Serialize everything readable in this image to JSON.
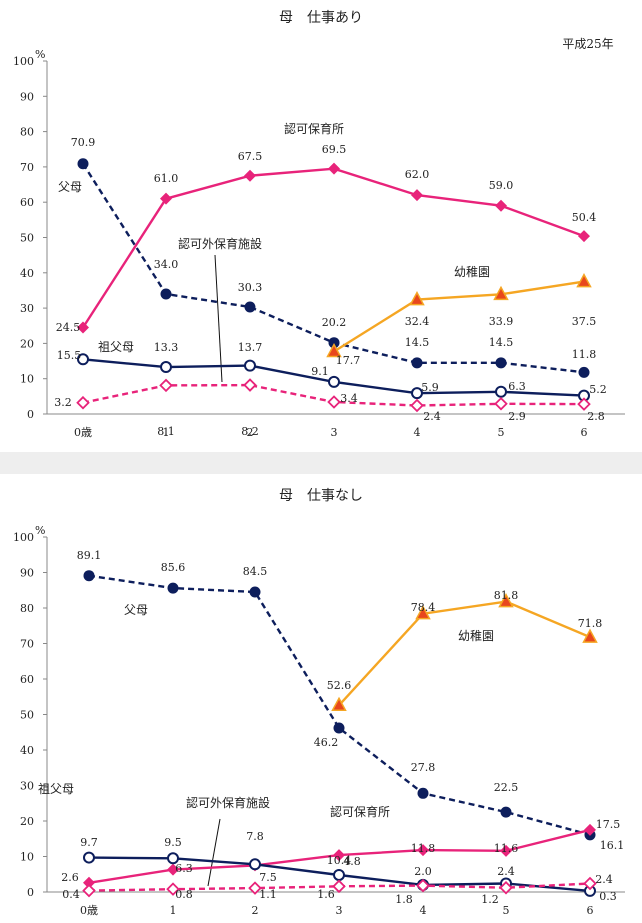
{
  "chart_data": [
    {
      "type": "line",
      "title": "母　仕事あり",
      "note": "平成25年",
      "y_unit": "%",
      "ylim": [
        0,
        100
      ],
      "yticks": [
        "0",
        "10",
        "20",
        "30",
        "40",
        "50",
        "60",
        "70",
        "80",
        "90",
        "100"
      ],
      "categories": [
        "0歳",
        "1",
        "2",
        "3",
        "4",
        "5",
        "6"
      ],
      "series": [
        {
          "name": "父母",
          "color": "#0d1e5c",
          "style": "dashed",
          "marker": "filled-circle",
          "x": [
            0,
            1,
            2,
            3,
            4,
            5,
            6
          ],
          "values": [
            70.9,
            34.0,
            30.3,
            20.2,
            14.5,
            14.5,
            11.8
          ],
          "labels": [
            "70.9",
            "34.0",
            "30.3",
            "20.2",
            "14.5",
            "14.5",
            "11.8"
          ]
        },
        {
          "name": "認可保育所",
          "color": "#e8237a",
          "style": "solid",
          "marker": "filled-diamond",
          "x": [
            0,
            1,
            2,
            3,
            4,
            5,
            6
          ],
          "values": [
            24.5,
            61.0,
            67.5,
            69.5,
            62.0,
            59.0,
            50.4
          ],
          "labels": [
            "24.5",
            "61.0",
            "67.5",
            "69.5",
            "62.0",
            "59.0",
            "50.4"
          ]
        },
        {
          "name": "幼稚園",
          "color": "#f5a623",
          "style": "solid",
          "marker": "triangle",
          "x": [
            3,
            4,
            5,
            6
          ],
          "values": [
            17.7,
            32.4,
            33.9,
            37.5
          ],
          "labels": [
            "17.7",
            "32.4",
            "33.9",
            "37.5"
          ]
        },
        {
          "name": "祖父母",
          "color": "#0d1e5c",
          "style": "solid",
          "marker": "open-circle",
          "x": [
            0,
            1,
            2,
            3,
            4,
            5,
            6
          ],
          "values": [
            15.5,
            13.3,
            13.7,
            9.1,
            5.9,
            6.3,
            5.2
          ],
          "labels": [
            "15.5",
            "13.3",
            "13.7",
            "9.1",
            "5.9",
            "6.3",
            "5.2"
          ]
        },
        {
          "name": "認可外保育施設",
          "color": "#e8237a",
          "style": "dashed",
          "marker": "open-diamond",
          "x": [
            0,
            1,
            2,
            3,
            4,
            5,
            6
          ],
          "values": [
            3.2,
            8.1,
            8.2,
            3.4,
            2.4,
            2.9,
            2.8
          ],
          "labels": [
            "3.2",
            "8.1",
            "8.2",
            "3.4",
            "2.4",
            "2.9",
            "2.8"
          ]
        }
      ]
    },
    {
      "type": "line",
      "title": "母　仕事なし",
      "y_unit": "%",
      "ylim": [
        0,
        100
      ],
      "yticks": [
        "0",
        "10",
        "20",
        "30",
        "40",
        "50",
        "60",
        "70",
        "80",
        "90",
        "100"
      ],
      "categories": [
        "0歳",
        "1",
        "2",
        "3",
        "4",
        "5",
        "6"
      ],
      "series": [
        {
          "name": "父母",
          "color": "#0d1e5c",
          "style": "dashed",
          "marker": "filled-circle",
          "x": [
            0,
            1,
            2,
            3,
            4,
            5,
            6
          ],
          "values": [
            89.1,
            85.6,
            84.5,
            46.2,
            27.8,
            22.5,
            16.1
          ],
          "labels": [
            "89.1",
            "85.6",
            "84.5",
            "46.2",
            "27.8",
            "22.5",
            "16.1"
          ]
        },
        {
          "name": "幼稚園",
          "color": "#f5a623",
          "style": "solid",
          "marker": "triangle",
          "x": [
            3,
            4,
            5,
            6
          ],
          "values": [
            52.6,
            78.4,
            81.8,
            71.8
          ],
          "labels": [
            "52.6",
            "78.4",
            "81.8",
            "71.8"
          ]
        },
        {
          "name": "認可保育所",
          "color": "#e8237a",
          "style": "solid",
          "marker": "filled-diamond",
          "x": [
            0,
            1,
            2,
            3,
            4,
            5,
            6
          ],
          "values": [
            2.6,
            6.3,
            7.5,
            10.4,
            11.8,
            11.6,
            17.5
          ],
          "labels": [
            "2.6",
            "6.3",
            "7.5",
            "10.4",
            "11.8",
            "11.6",
            "17.5"
          ]
        },
        {
          "name": "祖父母",
          "color": "#0d1e5c",
          "style": "solid",
          "marker": "open-circle",
          "x": [
            0,
            1,
            2,
            3,
            4,
            5,
            6
          ],
          "values": [
            9.7,
            9.5,
            7.8,
            4.8,
            2.0,
            2.4,
            0.3
          ],
          "labels": [
            "9.7",
            "9.5",
            "7.8",
            "4.8",
            "2.0",
            "2.4",
            "0.3"
          ]
        },
        {
          "name": "認可外保育施設",
          "color": "#e8237a",
          "style": "dashed",
          "marker": "open-diamond",
          "x": [
            0,
            1,
            2,
            3,
            4,
            5,
            6
          ],
          "values": [
            0.4,
            0.8,
            1.1,
            1.6,
            1.8,
            1.2,
            2.4
          ],
          "labels": [
            "0.4",
            "0.8",
            "1.1",
            "1.6",
            "1.8",
            "1.2",
            "2.4"
          ]
        }
      ]
    }
  ]
}
